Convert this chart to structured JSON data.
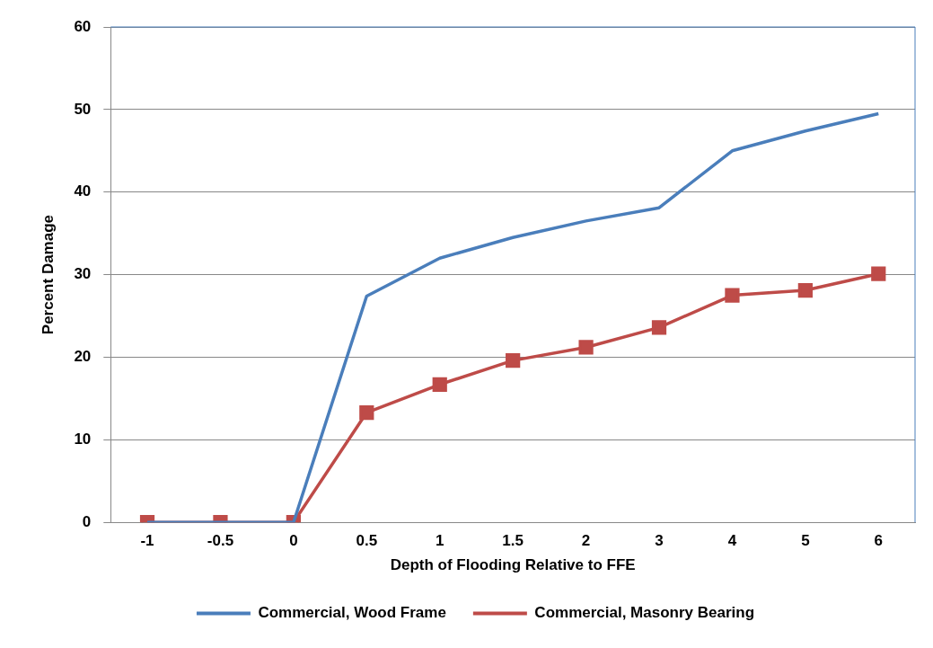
{
  "chart_data": {
    "type": "line",
    "xlabel": "Depth of Flooding Relative to FFE",
    "ylabel": "Percent Damage",
    "categories": [
      "-1",
      "-0.5",
      "0",
      "0.5",
      "1",
      "1.5",
      "2",
      "3",
      "4",
      "5",
      "6"
    ],
    "series": [
      {
        "name": "Commercial, Wood Frame",
        "color": "#4a7ebb",
        "marker": "none",
        "values": [
          0,
          0,
          0,
          27.4,
          32,
          34.5,
          36.5,
          38.1,
          45,
          47.4,
          49.5
        ]
      },
      {
        "name": "Commercial, Masonry Bearing",
        "color": "#be4b48",
        "marker": "square",
        "values": [
          0,
          0,
          0,
          13.3,
          16.7,
          19.6,
          21.2,
          23.6,
          27.5,
          28.1,
          30.1
        ]
      }
    ],
    "ylim": [
      0,
      60
    ],
    "yticks": [
      0,
      10,
      20,
      30,
      40,
      50,
      60
    ],
    "grid": "y",
    "legend": "bottom",
    "line_style": "solid"
  }
}
